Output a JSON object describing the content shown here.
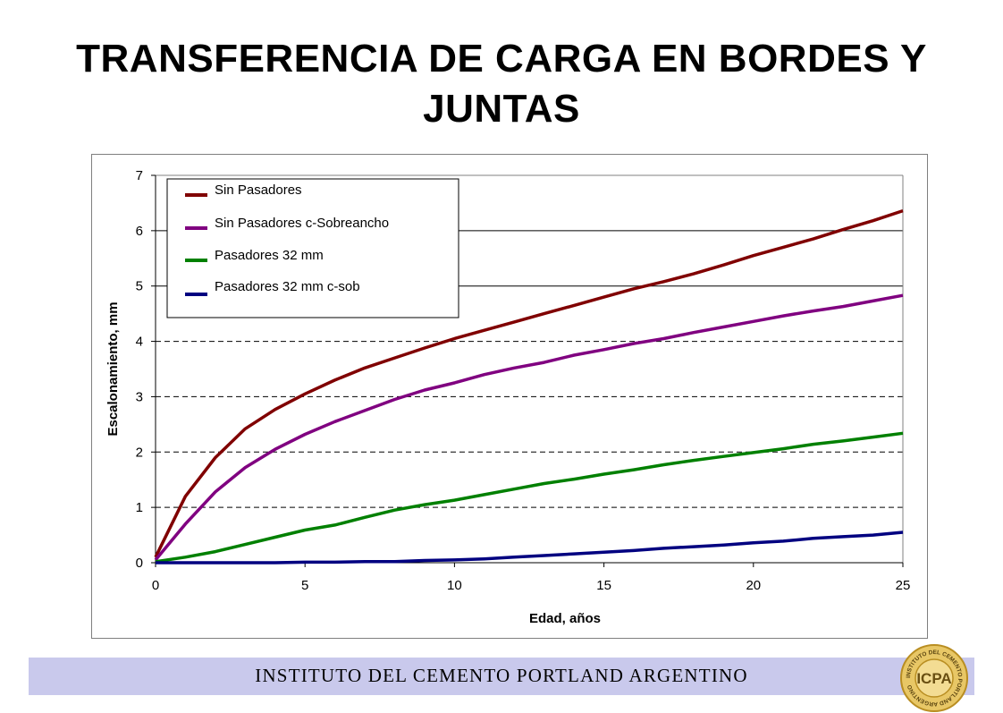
{
  "slide": {
    "title": "TRANSFERENCIA DE CARGA EN BORDES Y JUNTAS",
    "footer": "INSTITUTO DEL CEMENTO PORTLAND ARGENTINO",
    "logo": {
      "text": "ICPA",
      "ring_text": "INSTITUTO DEL CEMENTO PORTLAND ARGENTINO",
      "color": "#d4a93a"
    }
  },
  "chart_data": {
    "type": "line",
    "xlabel": "Edad, años",
    "ylabel": "Escalonamiento, mm",
    "xlim": [
      0,
      25
    ],
    "ylim": [
      0,
      7
    ],
    "xticks": [
      0,
      5,
      10,
      15,
      20,
      25
    ],
    "yticks": [
      0,
      1,
      2,
      3,
      4,
      5,
      6,
      7
    ],
    "grid": "horizontal: dashed at 1-4, solid at 5-6",
    "legend_position": "top-left",
    "x": [
      0,
      1,
      2,
      3,
      4,
      5,
      6,
      7,
      8,
      9,
      10,
      11,
      12,
      13,
      14,
      15,
      16,
      17,
      18,
      19,
      20,
      21,
      22,
      23,
      24,
      25
    ],
    "series": [
      {
        "name": "Sin Pasadores",
        "color": "#800000",
        "values": [
          0.1,
          1.2,
          1.9,
          2.42,
          2.77,
          3.05,
          3.3,
          3.52,
          3.7,
          3.88,
          4.05,
          4.2,
          4.35,
          4.5,
          4.65,
          4.8,
          4.95,
          5.08,
          5.22,
          5.38,
          5.55,
          5.7,
          5.85,
          6.02,
          6.18,
          6.36
        ]
      },
      {
        "name": "Sin Pasadores c-Sobreancho",
        "color": "#800080",
        "values": [
          0.05,
          0.7,
          1.28,
          1.72,
          2.05,
          2.32,
          2.55,
          2.75,
          2.95,
          3.12,
          3.25,
          3.4,
          3.52,
          3.62,
          3.75,
          3.85,
          3.96,
          4.05,
          4.16,
          4.26,
          4.36,
          4.46,
          4.55,
          4.63,
          4.73,
          4.83
        ]
      },
      {
        "name": "Pasadores 32 mm",
        "color": "#008000",
        "values": [
          0.02,
          0.1,
          0.2,
          0.33,
          0.46,
          0.59,
          0.68,
          0.82,
          0.95,
          1.05,
          1.13,
          1.23,
          1.33,
          1.43,
          1.51,
          1.6,
          1.68,
          1.77,
          1.85,
          1.92,
          1.99,
          2.06,
          2.14,
          2.2,
          2.27,
          2.34
        ]
      },
      {
        "name": "Pasadores 32 mm c-sob",
        "color": "#000080",
        "values": [
          0.0,
          0.0,
          0.0,
          0.0,
          0.0,
          0.01,
          0.01,
          0.02,
          0.02,
          0.04,
          0.05,
          0.07,
          0.1,
          0.13,
          0.16,
          0.19,
          0.22,
          0.26,
          0.29,
          0.32,
          0.36,
          0.39,
          0.44,
          0.47,
          0.5,
          0.55
        ]
      }
    ]
  }
}
